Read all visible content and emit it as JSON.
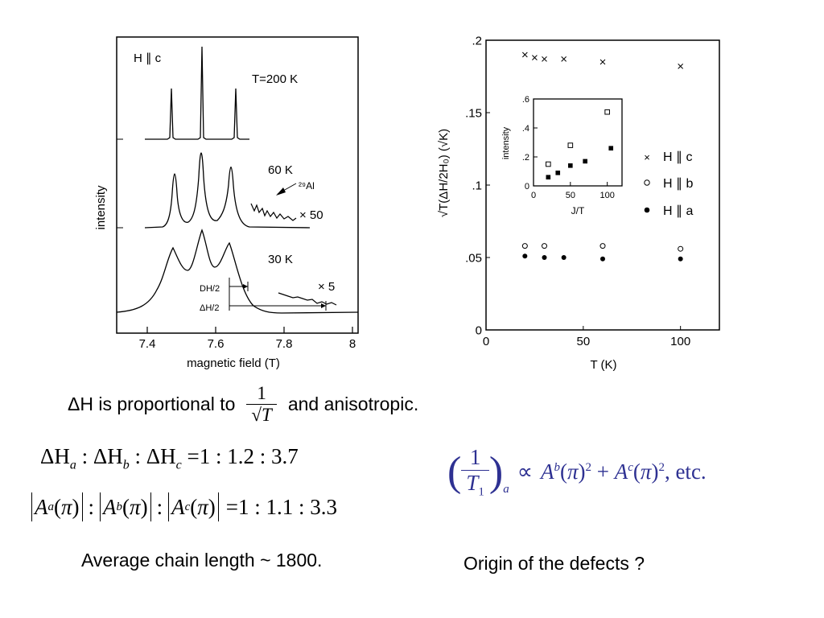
{
  "left_figure": {
    "field_label": "H ∥ c",
    "ylabel": "intensity",
    "xlabel": "magnetic field  (T)",
    "xticks": [
      "7.4",
      "7.6",
      "7.8",
      "8"
    ],
    "spectra": [
      {
        "label": "T=200 K",
        "peaks": [
          7.46,
          7.555,
          7.655
        ]
      },
      {
        "label": "60 K",
        "peaks": [
          7.48,
          7.555,
          7.64
        ],
        "isotope": "²⁹Al",
        "magnification": "× 50"
      },
      {
        "label": "30 K",
        "peaks": [
          7.48,
          7.55,
          7.63
        ],
        "magnification": "× 5"
      }
    ],
    "width_labels": {
      "dh": "DH/2",
      "delta_h": "ΔH/2"
    }
  },
  "right_figure": {
    "ylabel": "√T(ΔH/2H₀)  (√K)",
    "xlabel": "T  (K)",
    "xticks": [
      "0",
      "50",
      "100"
    ],
    "yticks": [
      "0",
      ".05",
      ".1",
      ".15",
      ".2"
    ],
    "legend": [
      {
        "symbol": "×",
        "label": "H ∥ c"
      },
      {
        "symbol": "○",
        "label": "H ∥ b"
      },
      {
        "symbol": "●",
        "label": "H ∥ a"
      }
    ],
    "inset": {
      "ylabel": "intensity",
      "xlabel": "J/T",
      "xticks": [
        "0",
        "50",
        "100"
      ],
      "yticks": [
        "0",
        ".2",
        ".4",
        ".6"
      ]
    }
  },
  "chart_data": [
    {
      "type": "scatter",
      "xlabel": "T  (K)",
      "ylabel": "√T(ΔH/2H₀)  (√K)",
      "xlim": [
        0,
        120
      ],
      "ylim": [
        0,
        0.2
      ],
      "series": [
        {
          "name": "H ∥ c",
          "x": [
            20,
            25,
            30,
            40,
            60,
            100
          ],
          "y": [
            0.19,
            0.188,
            0.187,
            0.187,
            0.185,
            0.182
          ]
        },
        {
          "name": "H ∥ b",
          "x": [
            20,
            30,
            60,
            100
          ],
          "y": [
            0.058,
            0.058,
            0.058,
            0.056
          ]
        },
        {
          "name": "H ∥ a",
          "x": [
            20,
            30,
            40,
            60,
            100
          ],
          "y": [
            0.051,
            0.05,
            0.05,
            0.049,
            0.049
          ]
        }
      ]
    },
    {
      "type": "scatter",
      "xlabel": "J/T",
      "ylabel": "intensity",
      "xlim": [
        0,
        120
      ],
      "ylim": [
        0,
        0.6
      ],
      "series": [
        {
          "x": [
            20,
            50,
            100
          ],
          "y": [
            0.15,
            0.28,
            0.51
          ]
        },
        {
          "x": [
            20,
            33,
            50,
            70,
            105
          ],
          "y": [
            0.06,
            0.09,
            0.14,
            0.17,
            0.26
          ]
        }
      ]
    }
  ],
  "text": {
    "line1_pre": "ΔH is proportional to",
    "line1_post": "and anisotropic.",
    "frac_num": "1",
    "frac_den": "√T",
    "ratio_dh_values": "=1 : 1.2 : 3.7",
    "ratio_a_values": "=1 : 1.1 : 3.3",
    "t1_formula_tail": ", etc.",
    "avg_chain": "Average chain length ~ 1800.",
    "origin": "Origin of the defects ?"
  }
}
